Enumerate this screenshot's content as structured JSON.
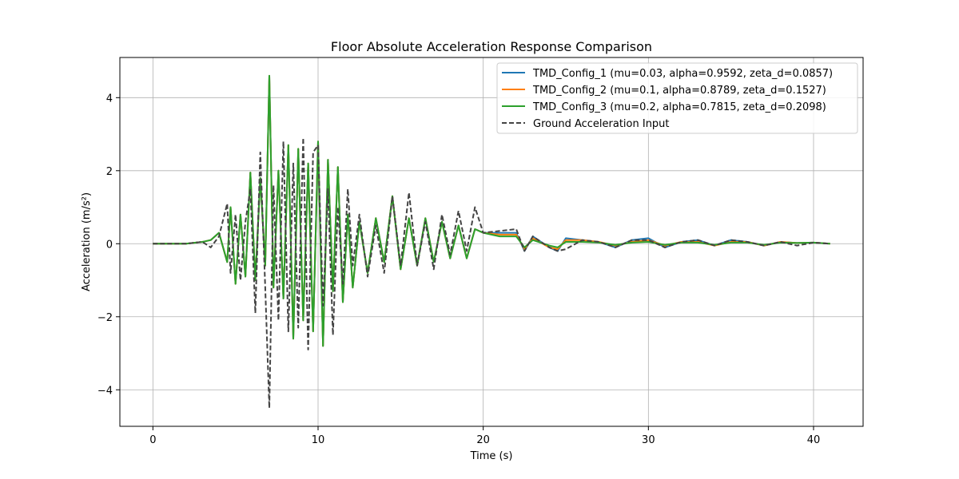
{
  "chart_data": {
    "type": "line",
    "title": "Floor Absolute Acceleration Response Comparison",
    "xlabel": "Time (s)",
    "ylabel": "Acceleration (m/s²)",
    "xlim": [
      -2,
      43
    ],
    "ylim": [
      -5,
      5.1
    ],
    "xticks": [
      0,
      10,
      20,
      30,
      40
    ],
    "xtick_labels": [
      "0",
      "10",
      "20",
      "30",
      "40"
    ],
    "yticks": [
      -4,
      -2,
      0,
      2,
      4
    ],
    "ytick_labels": [
      "−4",
      "−2",
      "0",
      "2",
      "4"
    ],
    "grid": true,
    "legend_position": "top-right",
    "series": [
      {
        "name": "TMD_Config_1 (mu=0.03, alpha=0.9592, zeta_d=0.0857)",
        "color": "#1f77b4",
        "dashed": false,
        "x": [
          0,
          2,
          3,
          3.5,
          4,
          4.5,
          4.7,
          5,
          5.3,
          5.6,
          5.9,
          6.2,
          6.5,
          6.8,
          7.05,
          7.3,
          7.6,
          7.9,
          8.2,
          8.5,
          8.8,
          9.1,
          9.4,
          9.7,
          10,
          10.3,
          10.6,
          10.9,
          11.2,
          11.5,
          11.8,
          12.1,
          12.5,
          13,
          13.5,
          14,
          14.5,
          15,
          15.5,
          16,
          16.5,
          17,
          17.5,
          18,
          18.5,
          19,
          19.5,
          20,
          21,
          22,
          22.5,
          23,
          24,
          24.5,
          25,
          26,
          27,
          28,
          29,
          30,
          31,
          32,
          33,
          34,
          35,
          36,
          37,
          38,
          39,
          40,
          41
        ],
        "y": [
          0,
          0,
          0.05,
          0.1,
          0.3,
          -0.5,
          1.0,
          -1.1,
          0.8,
          -0.9,
          1.95,
          -1.0,
          1.8,
          -0.6,
          4.6,
          -1.2,
          2.0,
          -1.5,
          2.7,
          -2.6,
          2.6,
          -2.1,
          2.2,
          -2.4,
          2.8,
          -2.8,
          2.3,
          -1.3,
          2.1,
          -1.6,
          0.8,
          -1.2,
          0.6,
          -0.8,
          0.7,
          -0.5,
          1.3,
          -0.7,
          0.7,
          -0.6,
          0.7,
          -0.5,
          0.6,
          -0.4,
          0.5,
          -0.4,
          0.4,
          0.3,
          0.3,
          0.3,
          -0.2,
          0.2,
          -0.1,
          -0.2,
          0.15,
          0.1,
          0.05,
          -0.1,
          0.1,
          0.15,
          -0.1,
          0.05,
          0.1,
          -0.05,
          0.1,
          0.05,
          -0.05,
          0.05,
          0.02,
          0.03,
          0
        ]
      },
      {
        "name": "TMD_Config_2 (mu=0.1, alpha=0.8789, zeta_d=0.1527)",
        "color": "#ff7f0e",
        "dashed": false,
        "x": [
          0,
          2,
          3,
          3.5,
          4,
          4.5,
          4.7,
          5,
          5.3,
          5.6,
          5.9,
          6.2,
          6.5,
          6.8,
          7.05,
          7.3,
          7.6,
          7.9,
          8.2,
          8.5,
          8.8,
          9.1,
          9.4,
          9.7,
          10,
          10.3,
          10.6,
          10.9,
          11.2,
          11.5,
          11.8,
          12.1,
          12.5,
          13,
          13.5,
          14,
          14.5,
          15,
          15.5,
          16,
          16.5,
          17,
          17.5,
          18,
          18.5,
          19,
          19.5,
          20,
          21,
          22,
          22.5,
          23,
          24,
          24.5,
          25,
          26,
          27,
          28,
          29,
          30,
          31,
          32,
          33,
          34,
          35,
          36,
          37,
          38,
          39,
          40,
          41
        ],
        "y": [
          0,
          0,
          0.05,
          0.1,
          0.3,
          -0.5,
          1.0,
          -1.1,
          0.8,
          -0.9,
          1.95,
          -1.0,
          1.8,
          -0.6,
          4.6,
          -1.2,
          2.0,
          -1.5,
          2.7,
          -2.6,
          2.6,
          -2.1,
          2.2,
          -2.4,
          2.8,
          -2.8,
          2.3,
          -1.3,
          2.1,
          -1.6,
          0.8,
          -1.2,
          0.6,
          -0.8,
          0.7,
          -0.5,
          1.3,
          -0.7,
          0.7,
          -0.6,
          0.7,
          -0.5,
          0.6,
          -0.4,
          0.5,
          -0.4,
          0.4,
          0.3,
          0.25,
          0.25,
          -0.15,
          0.15,
          -0.1,
          -0.15,
          0.1,
          0.1,
          0.05,
          -0.05,
          0.05,
          0.1,
          -0.05,
          0.05,
          0.05,
          -0.05,
          0.05,
          0.05,
          -0.05,
          0.05,
          0.02,
          0.03,
          0
        ]
      },
      {
        "name": "TMD_Config_3 (mu=0.2, alpha=0.7815, zeta_d=0.2098)",
        "color": "#2ca02c",
        "dashed": false,
        "x": [
          0,
          2,
          3,
          3.5,
          4,
          4.5,
          4.7,
          5,
          5.3,
          5.6,
          5.9,
          6.2,
          6.5,
          6.8,
          7.05,
          7.3,
          7.6,
          7.9,
          8.2,
          8.5,
          8.8,
          9.1,
          9.4,
          9.7,
          10,
          10.3,
          10.6,
          10.9,
          11.2,
          11.5,
          11.8,
          12.1,
          12.5,
          13,
          13.5,
          14,
          14.5,
          15,
          15.5,
          16,
          16.5,
          17,
          17.5,
          18,
          18.5,
          19,
          19.5,
          20,
          21,
          22,
          22.5,
          23,
          24,
          24.5,
          25,
          26,
          27,
          28,
          29,
          30,
          31,
          32,
          33,
          34,
          35,
          36,
          37,
          38,
          39,
          40,
          41
        ],
        "y": [
          0,
          0,
          0.05,
          0.1,
          0.3,
          -0.5,
          1.0,
          -1.1,
          0.8,
          -0.9,
          1.95,
          -1.0,
          1.8,
          -0.6,
          4.6,
          -1.2,
          2.0,
          -1.5,
          2.7,
          -2.6,
          2.6,
          -2.1,
          2.2,
          -2.4,
          2.8,
          -2.8,
          2.3,
          -1.3,
          2.1,
          -1.6,
          0.8,
          -1.2,
          0.6,
          -0.8,
          0.7,
          -0.5,
          1.3,
          -0.7,
          0.7,
          -0.6,
          0.7,
          -0.5,
          0.6,
          -0.4,
          0.5,
          -0.4,
          0.4,
          0.3,
          0.2,
          0.2,
          -0.1,
          0.1,
          -0.05,
          -0.1,
          0.05,
          0.05,
          0.03,
          -0.03,
          0.03,
          0.05,
          -0.03,
          0.03,
          0.03,
          -0.03,
          0.03,
          0.03,
          -0.03,
          0.03,
          0.02,
          0.03,
          0
        ]
      },
      {
        "name": "Ground Acceleration Input",
        "color": "#444444",
        "dashed": true,
        "x": [
          0,
          2,
          3,
          3.5,
          4,
          4.5,
          4.7,
          5,
          5.3,
          5.6,
          5.9,
          6.2,
          6.5,
          6.8,
          7.05,
          7.3,
          7.6,
          7.9,
          8.2,
          8.5,
          8.8,
          9.1,
          9.4,
          9.7,
          10,
          10.3,
          10.6,
          10.9,
          11.2,
          11.5,
          11.8,
          12.1,
          12.5,
          13,
          13.5,
          14,
          14.5,
          15,
          15.5,
          16,
          16.5,
          17,
          17.5,
          18,
          18.5,
          19,
          19.5,
          20,
          21,
          22,
          22.5,
          23,
          24,
          24.5,
          25,
          26,
          27,
          28,
          29,
          30,
          31,
          32,
          33,
          34,
          35,
          36,
          37,
          38,
          39,
          40,
          41
        ],
        "y": [
          0,
          0,
          0.05,
          -0.1,
          0.2,
          1.1,
          -0.8,
          0.8,
          -1.0,
          0.6,
          1.5,
          -1.9,
          2.5,
          -1.2,
          -4.5,
          1.6,
          -2.1,
          2.8,
          -2.4,
          2.2,
          -2.3,
          2.9,
          -2.9,
          2.5,
          2.7,
          -1.7,
          1.5,
          -2.5,
          1.0,
          -1.1,
          1.5,
          -0.6,
          0.8,
          -0.9,
          0.5,
          -0.8,
          1.3,
          -0.6,
          1.4,
          -0.6,
          0.6,
          -0.7,
          0.8,
          -0.3,
          0.9,
          -0.2,
          1.0,
          0.3,
          0.35,
          0.4,
          -0.2,
          0.2,
          -0.1,
          -0.2,
          -0.15,
          0.1,
          0.05,
          -0.1,
          0.1,
          0.1,
          -0.1,
          0.05,
          0.1,
          -0.05,
          0.1,
          0.05,
          -0.05,
          0.05,
          -0.05,
          0.03,
          0
        ]
      }
    ]
  }
}
